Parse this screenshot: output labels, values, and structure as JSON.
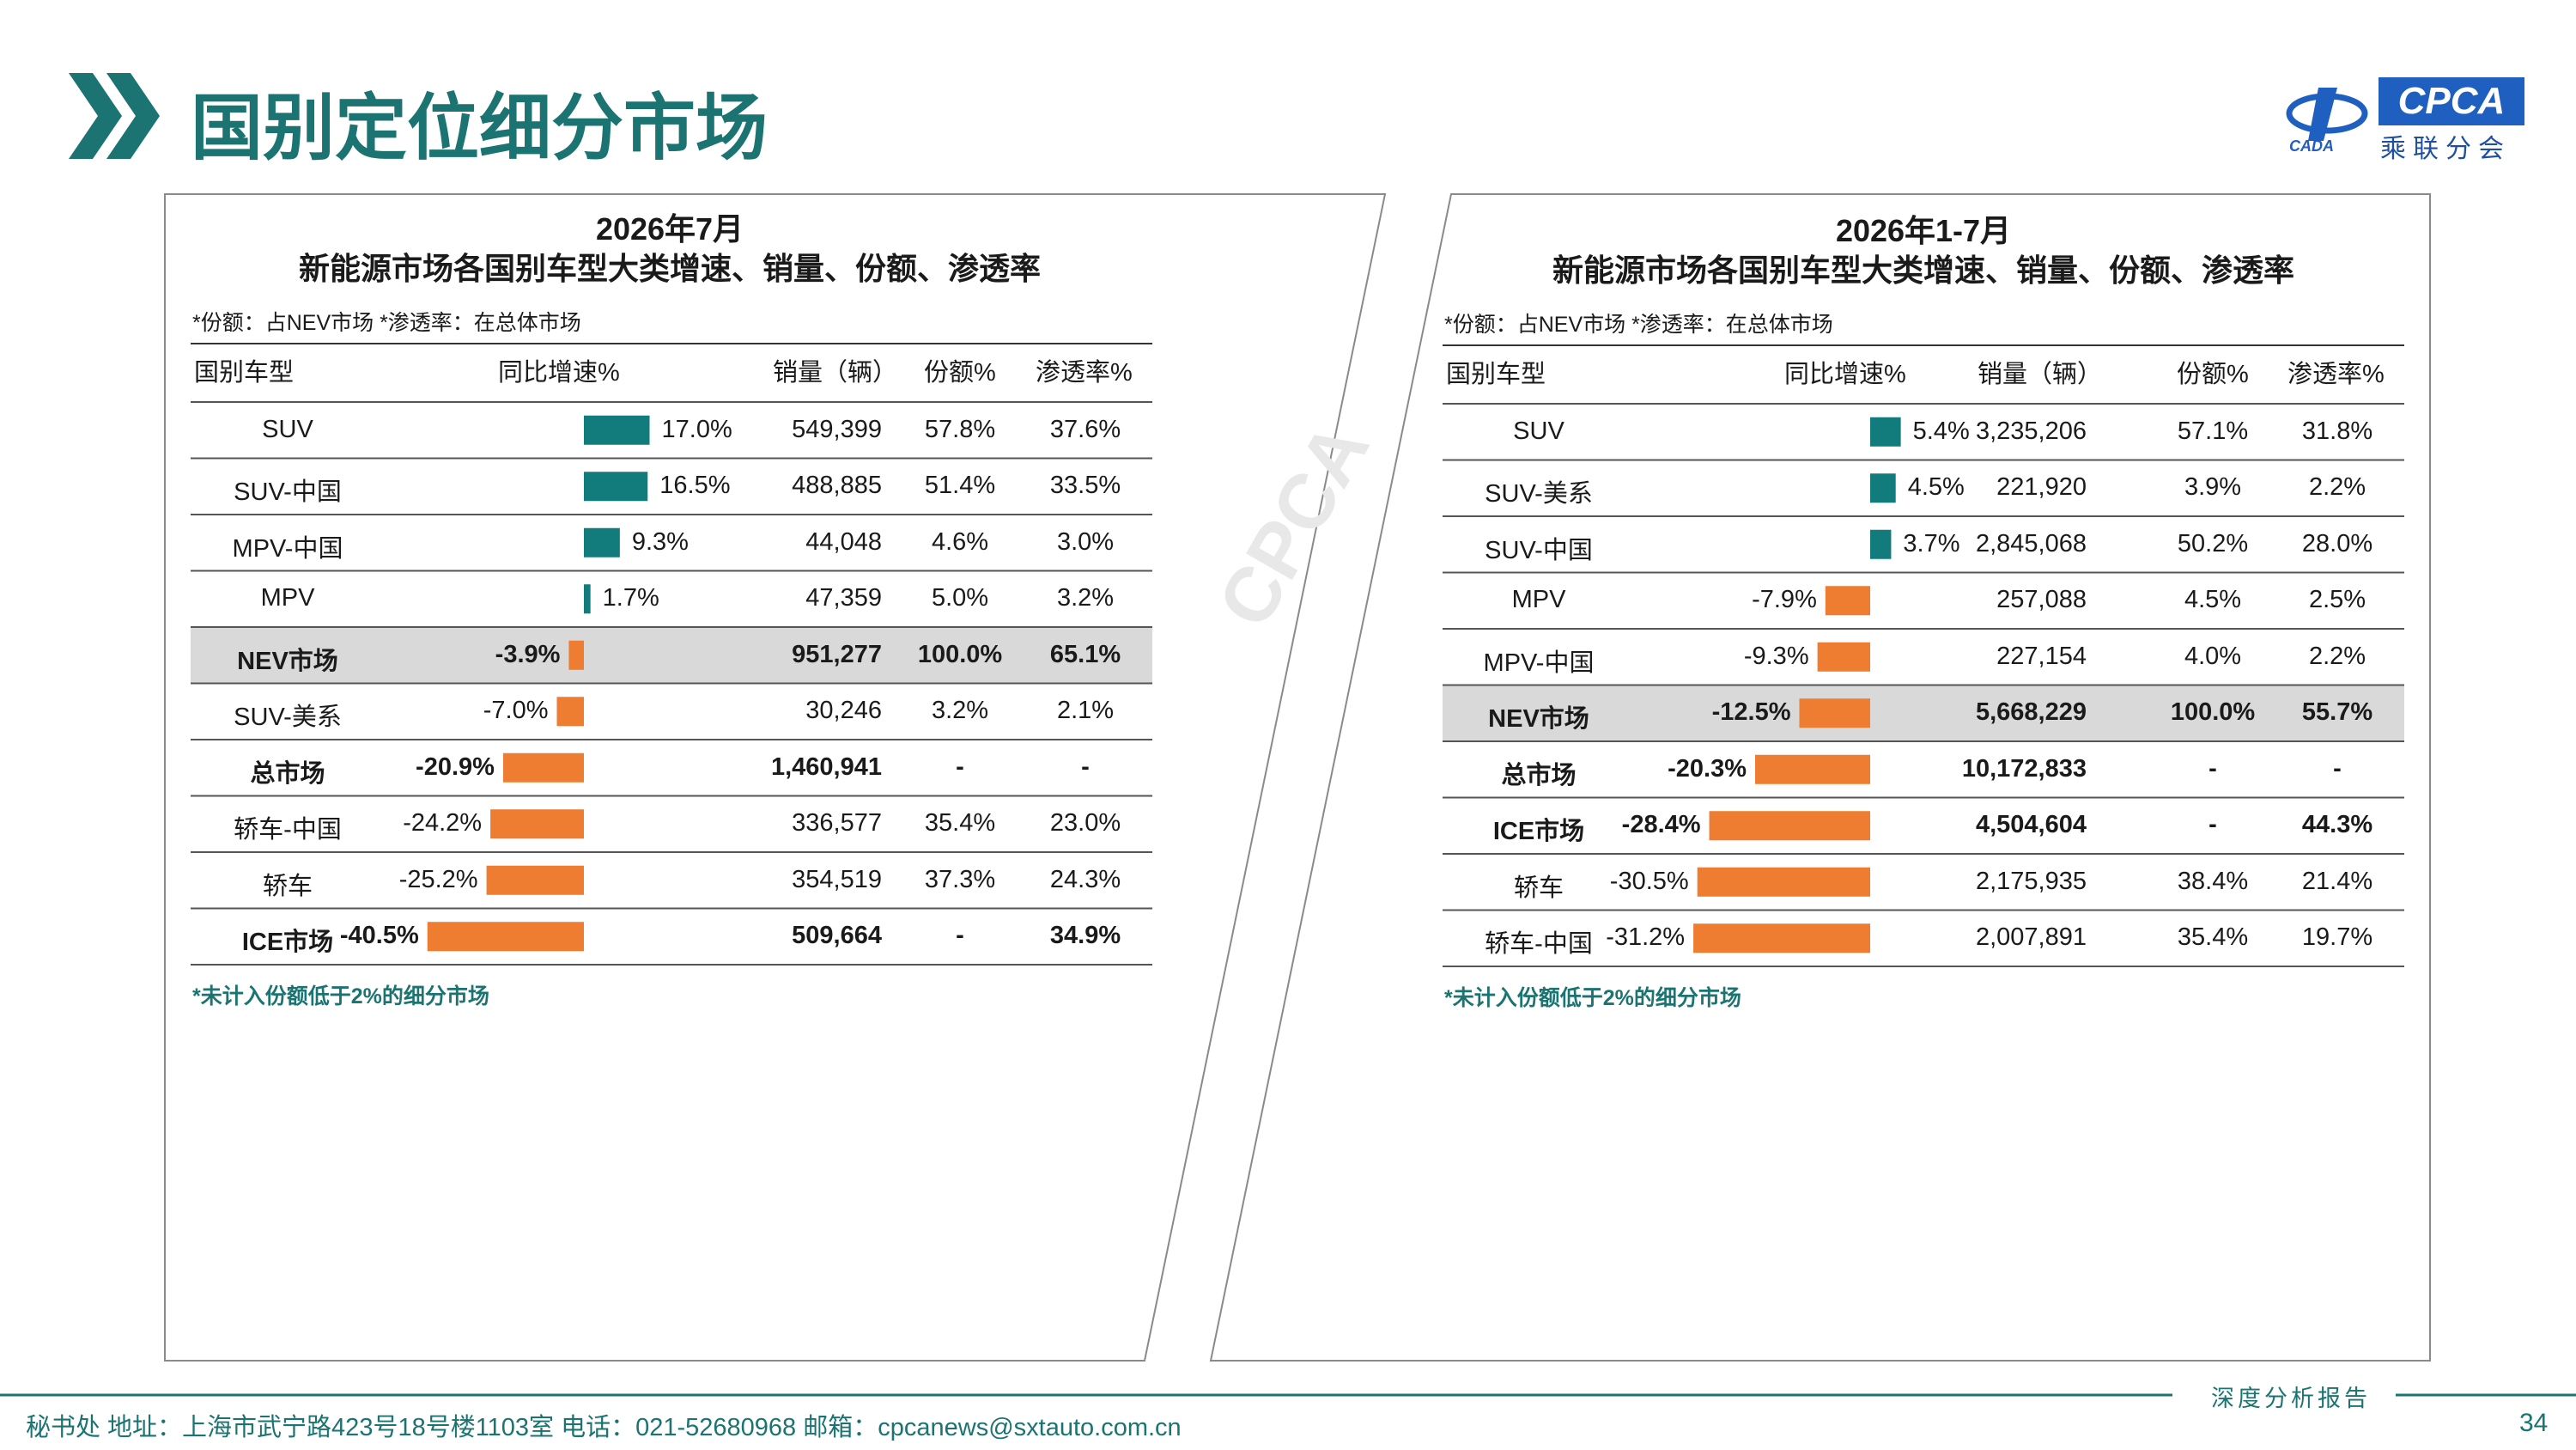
{
  "title": "国别定位细分市场",
  "logo": {
    "brand": "CPCA",
    "cn": "乘联分会",
    "mark": "CADA"
  },
  "colors": {
    "teal": "#127b7b",
    "orange": "#ee7c31",
    "title": "#1b7471",
    "highlight": "#d9d9d9"
  },
  "headers": {
    "type": "国别车型",
    "growth": "同比增速%",
    "sales": "销量（辆）",
    "share": "份额%",
    "penetration": "渗透率%"
  },
  "left": {
    "heading_line1": "2026年7月",
    "heading_line2": "新能源市场各国别车型大类增速、销量、份额、渗透率",
    "note": "*份额：占NEV市场   *渗透率：在总体市场",
    "footnote": "*未计入份额低于2%的细分市场"
  },
  "right": {
    "heading_line1": "2026年1-7月",
    "heading_line2": "新能源市场各国别车型大类增速、销量、份额、渗透率",
    "note": "*份额：占NEV市场   *渗透率：在总体市场",
    "footnote": "*未计入份额低于2%的细分市场"
  },
  "chart_data": [
    {
      "type": "bar",
      "title": "2026年7月 新能源市场各国别车型大类增速、销量、份额、渗透率",
      "rows": [
        {
          "type": "SUV",
          "growth": 17.0,
          "growth_label": "17.0%",
          "sales": "549,399",
          "share": "57.8%",
          "penetration": "37.6%"
        },
        {
          "type": "SUV-中国",
          "growth": 16.5,
          "growth_label": "16.5%",
          "sales": "488,885",
          "share": "51.4%",
          "penetration": "33.5%"
        },
        {
          "type": "MPV-中国",
          "growth": 9.3,
          "growth_label": "9.3%",
          "sales": "44,048",
          "share": "4.6%",
          "penetration": "3.0%"
        },
        {
          "type": "MPV",
          "growth": 1.7,
          "growth_label": "1.7%",
          "sales": "47,359",
          "share": "5.0%",
          "penetration": "3.2%"
        },
        {
          "type": "NEV市场",
          "growth": -3.9,
          "growth_label": "-3.9%",
          "sales": "951,277",
          "share": "100.0%",
          "penetration": "65.1%",
          "bold": true,
          "highlight": true
        },
        {
          "type": "SUV-美系",
          "growth": -7.0,
          "growth_label": "-7.0%",
          "sales": "30,246",
          "share": "3.2%",
          "penetration": "2.1%"
        },
        {
          "type": "总市场",
          "growth": -20.9,
          "growth_label": "-20.9%",
          "sales": "1,460,941",
          "share": "-",
          "penetration": "-",
          "bold": true
        },
        {
          "type": "轿车-中国",
          "growth": -24.2,
          "growth_label": "-24.2%",
          "sales": "336,577",
          "share": "35.4%",
          "penetration": "23.0%"
        },
        {
          "type": "轿车",
          "growth": -25.2,
          "growth_label": "-25.2%",
          "sales": "354,519",
          "share": "37.3%",
          "penetration": "24.3%"
        },
        {
          "type": "ICE市场",
          "growth": -40.5,
          "growth_label": "-40.5%",
          "sales": "509,664",
          "share": "-",
          "penetration": "34.9%",
          "bold": true
        }
      ]
    },
    {
      "type": "bar",
      "title": "2026年1-7月 新能源市场各国别车型大类增速、销量、份额、渗透率",
      "rows": [
        {
          "type": "SUV",
          "growth": 5.4,
          "growth_label": "5.4%",
          "sales": "3,235,206",
          "share": "57.1%",
          "penetration": "31.8%"
        },
        {
          "type": "SUV-美系",
          "growth": 4.5,
          "growth_label": "4.5%",
          "sales": "221,920",
          "share": "3.9%",
          "penetration": "2.2%"
        },
        {
          "type": "SUV-中国",
          "growth": 3.7,
          "growth_label": "3.7%",
          "sales": "2,845,068",
          "share": "50.2%",
          "penetration": "28.0%"
        },
        {
          "type": "MPV",
          "growth": -7.9,
          "growth_label": "-7.9%",
          "sales": "257,088",
          "share": "4.5%",
          "penetration": "2.5%"
        },
        {
          "type": "MPV-中国",
          "growth": -9.3,
          "growth_label": "-9.3%",
          "sales": "227,154",
          "share": "4.0%",
          "penetration": "2.2%"
        },
        {
          "type": "NEV市场",
          "growth": -12.5,
          "growth_label": "-12.5%",
          "sales": "5,668,229",
          "share": "100.0%",
          "penetration": "55.7%",
          "bold": true,
          "highlight": true
        },
        {
          "type": "总市场",
          "growth": -20.3,
          "growth_label": "-20.3%",
          "sales": "10,172,833",
          "share": "-",
          "penetration": "-",
          "bold": true
        },
        {
          "type": "ICE市场",
          "growth": -28.4,
          "growth_label": "-28.4%",
          "sales": "4,504,604",
          "share": "-",
          "penetration": "44.3%",
          "bold": true
        },
        {
          "type": "轿车",
          "growth": -30.5,
          "growth_label": "-30.5%",
          "sales": "2,175,935",
          "share": "38.4%",
          "penetration": "21.4%"
        },
        {
          "type": "轿车-中国",
          "growth": -31.2,
          "growth_label": "-31.2%",
          "sales": "2,007,891",
          "share": "35.4%",
          "penetration": "19.7%"
        }
      ]
    }
  ],
  "footer": {
    "text": "秘书处   地址：上海市武宁路423号18号楼1103室   电话：021-52680968   邮箱：cpcanews@sxtauto.com.cn",
    "report": "深度分析报告",
    "page": "34"
  }
}
